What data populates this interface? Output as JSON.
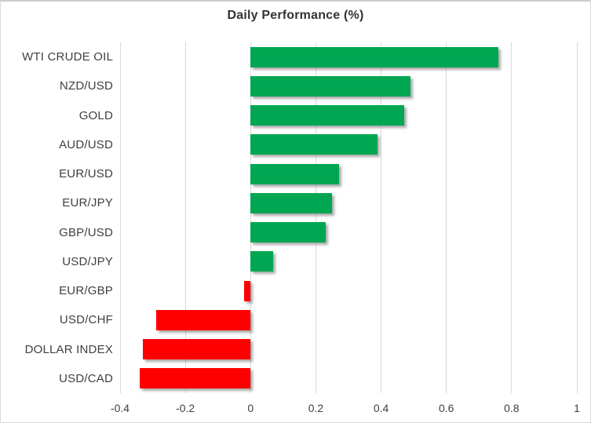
{
  "chart_data": {
    "type": "bar",
    "orientation": "horizontal",
    "title": "Daily Performance (%)",
    "categories": [
      "WTI CRUDE OIL",
      "NZD/USD",
      "GOLD",
      "AUD/USD",
      "EUR/USD",
      "EUR/JPY",
      "GBP/USD",
      "USD/JPY",
      "EUR/GBP",
      "USD/CHF",
      "DOLLAR INDEX",
      "USD/CAD"
    ],
    "values": [
      0.76,
      0.49,
      0.47,
      0.39,
      0.27,
      0.25,
      0.23,
      0.07,
      -0.02,
      -0.29,
      -0.33,
      -0.34
    ],
    "xlabel": "",
    "ylabel": "",
    "xlim": [
      -0.4,
      1.0
    ],
    "x_ticks": [
      -0.4,
      -0.2,
      0,
      0.2,
      0.4,
      0.6,
      0.8,
      1
    ],
    "x_tick_labels": [
      "-0.4",
      "-0.2",
      "0",
      "0.2",
      "0.4",
      "0.6",
      "0.8",
      "1"
    ],
    "grid": "vertical-only",
    "legend": "none",
    "colors": {
      "positive": "#00A651",
      "negative": "#FF0000",
      "gridline": "#D9D9D9",
      "text": "#404040",
      "title_text": "#333333"
    }
  }
}
